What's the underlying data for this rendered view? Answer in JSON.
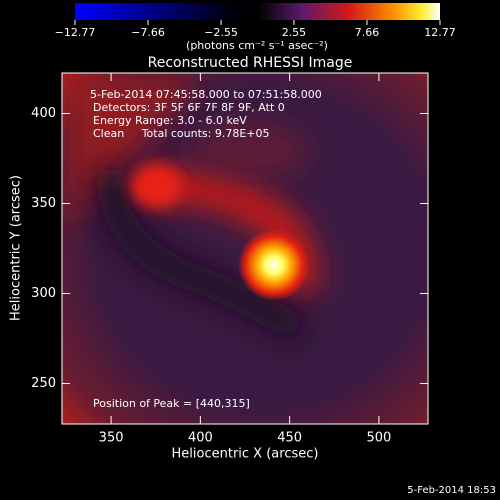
{
  "chart_data": {
    "type": "image",
    "title": "Reconstructed RHESSI Image",
    "xlabel": "Heliocentric X (arcsec)",
    "ylabel": "Heliocentric Y (arcsec)",
    "xlim": [
      322.5,
      527.5
    ],
    "xticks": [
      350,
      400,
      450,
      500
    ],
    "ylim": [
      227.5,
      422.5
    ],
    "yticks": [
      250,
      300,
      350,
      400
    ],
    "colorbar": {
      "label": "(photons cm⁻² s⁻¹ asec⁻²)",
      "lim": [
        -12.77,
        12.77
      ],
      "ticks": [
        {
          "value": -12.77,
          "label": "−12.77"
        },
        {
          "value": -7.66,
          "label": "−7.66"
        },
        {
          "value": -2.55,
          "label": "−2.55"
        },
        2.55,
        7.66,
        12.77
      ]
    },
    "annotations": [
      "5-Feb-2014 07:45:58.000 to 07:51:58.000",
      "Detectors: 3F 5F 6F 7F 8F 9F, Att 0",
      "Energy Range: 3.0 - 6.0 keV",
      "Clean     Total counts: 9.78E+05"
    ],
    "peak_label": "Position of Peak = [440,315]",
    "footer": "5-Feb-2014 18:53"
  }
}
